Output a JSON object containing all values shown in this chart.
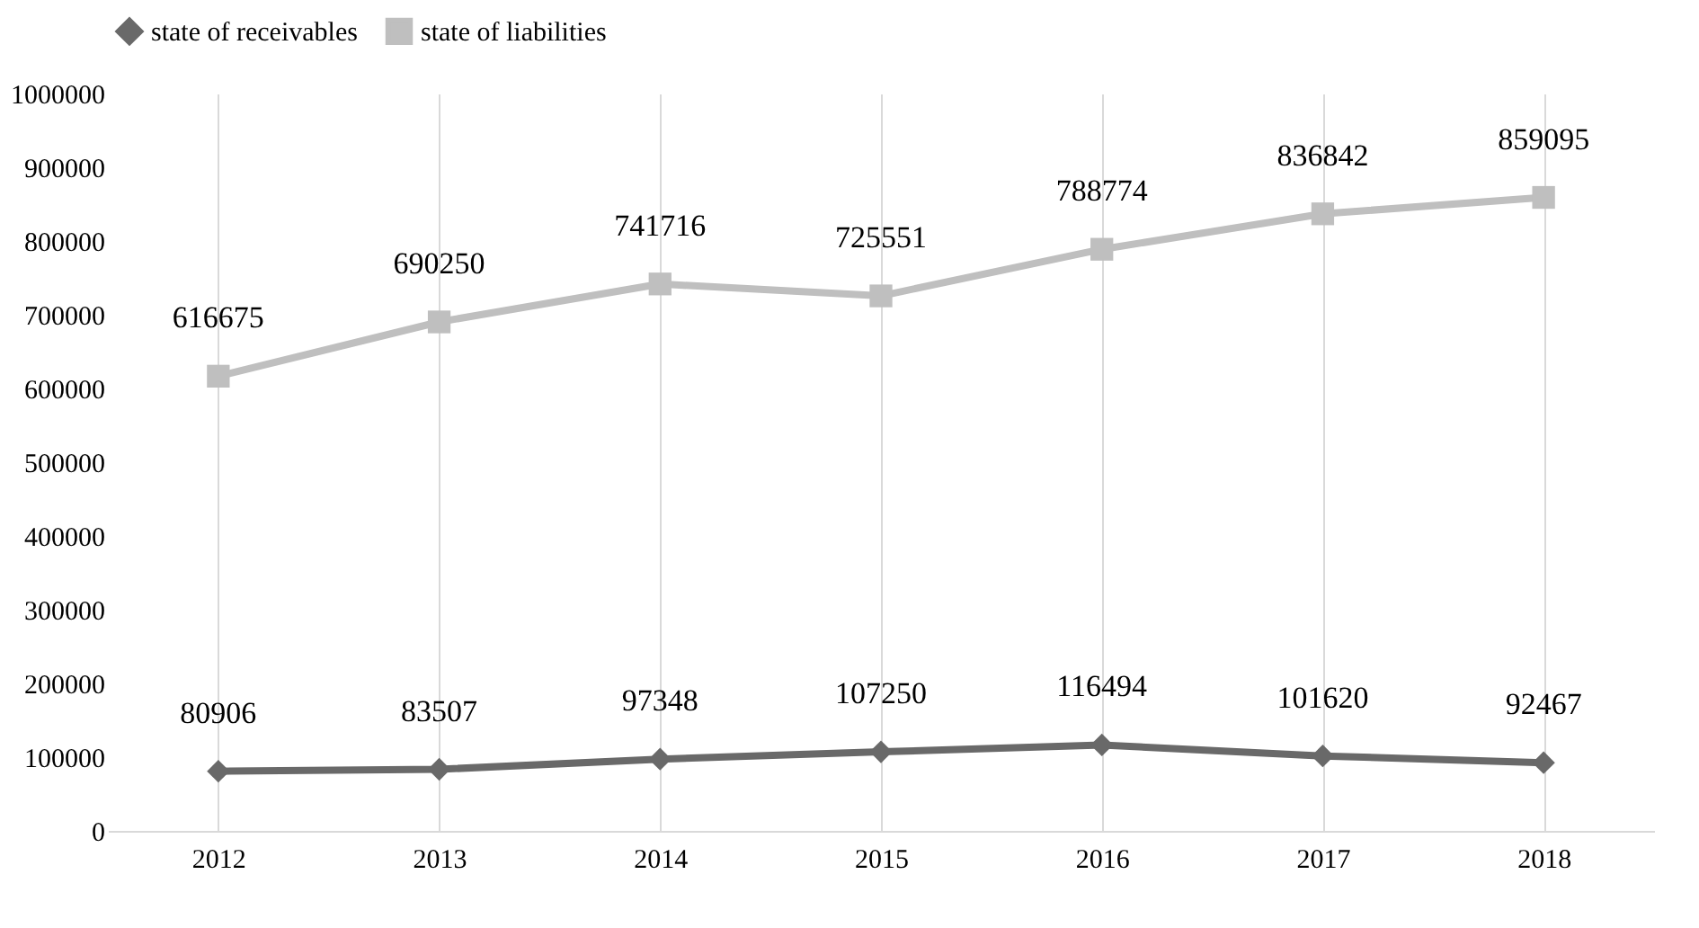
{
  "chart_data": {
    "type": "line",
    "categories": [
      "2012",
      "2013",
      "2014",
      "2015",
      "2016",
      "2017",
      "2018"
    ],
    "series": [
      {
        "name": "state of receivables",
        "color": "#696969",
        "marker": "diamond",
        "values": [
          80906,
          83507,
          97348,
          107250,
          116494,
          101620,
          92467
        ]
      },
      {
        "name": "state of liabilities",
        "color": "#bfbfbf",
        "marker": "square",
        "values": [
          616675,
          690250,
          741716,
          725551,
          788774,
          836842,
          859095
        ]
      }
    ],
    "ylim": [
      0,
      1000000
    ],
    "yticks": [
      0,
      100000,
      200000,
      300000,
      400000,
      500000,
      600000,
      700000,
      800000,
      900000,
      1000000
    ],
    "grid": "x",
    "legend": "top",
    "data_labels": true,
    "line_style": "solid"
  }
}
